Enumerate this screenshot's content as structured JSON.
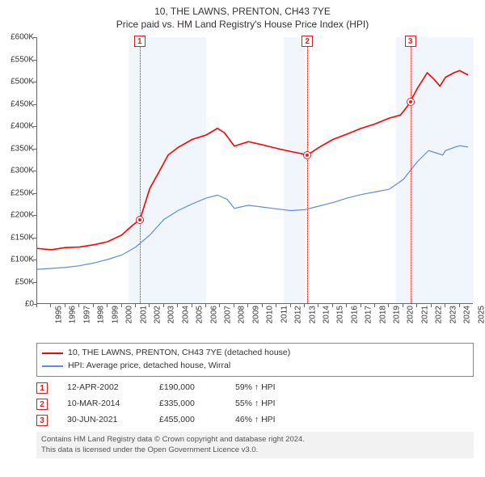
{
  "title": {
    "line1": "10, THE LAWNS, PRENTON, CH43 7YE",
    "line2": "Price paid vs. HM Land Registry's House Price Index (HPI)"
  },
  "chart": {
    "xlim": [
      1995,
      2026
    ],
    "ylim": [
      0,
      600
    ],
    "y_unit_prefix": "£",
    "y_unit_suffix": "K",
    "ytick_step": 50,
    "xticks": [
      1995,
      1996,
      1997,
      1998,
      1999,
      2000,
      2001,
      2002,
      2003,
      2004,
      2005,
      2006,
      2007,
      2008,
      2009,
      2010,
      2011,
      2012,
      2013,
      2014,
      2015,
      2016,
      2017,
      2018,
      2019,
      2020,
      2021,
      2022,
      2023,
      2024,
      2025
    ],
    "background_color": "#ffffff",
    "shade_color": "#e8f0fa",
    "axis_color": "#666666",
    "marker_color": "#e02020",
    "shaded_ranges": [
      [
        2001.5,
        2007.0
      ],
      [
        2012.5,
        2014.0
      ],
      [
        2020.5,
        2026.0
      ]
    ],
    "series": [
      {
        "name": "10, THE LAWNS, PRENTON, CH43 7YE (detached house)",
        "color": "#ff0000",
        "width": 1.6,
        "data": [
          [
            1995,
            125
          ],
          [
            1996,
            122
          ],
          [
            1997,
            127
          ],
          [
            1998,
            128
          ],
          [
            1999,
            133
          ],
          [
            2000,
            140
          ],
          [
            2001,
            155
          ],
          [
            2001.7,
            175
          ],
          [
            2002.3,
            190
          ],
          [
            2003,
            260
          ],
          [
            2003.7,
            300
          ],
          [
            2004.3,
            335
          ],
          [
            2005,
            352
          ],
          [
            2006,
            370
          ],
          [
            2007,
            380
          ],
          [
            2007.8,
            395
          ],
          [
            2008.3,
            385
          ],
          [
            2009,
            355
          ],
          [
            2010,
            365
          ],
          [
            2011,
            358
          ],
          [
            2012,
            350
          ],
          [
            2013,
            343
          ],
          [
            2013.8,
            338
          ],
          [
            2014.2,
            335
          ],
          [
            2015,
            352
          ],
          [
            2016,
            370
          ],
          [
            2017,
            382
          ],
          [
            2018,
            395
          ],
          [
            2019,
            405
          ],
          [
            2020,
            418
          ],
          [
            2020.8,
            425
          ],
          [
            2021.3,
            445
          ],
          [
            2021.5,
            455
          ],
          [
            2022,
            485
          ],
          [
            2022.7,
            520
          ],
          [
            2023.2,
            505
          ],
          [
            2023.6,
            490
          ],
          [
            2024,
            510
          ],
          [
            2024.6,
            520
          ],
          [
            2025,
            525
          ],
          [
            2025.6,
            515
          ]
        ]
      },
      {
        "name": "HPI: Average price, detached house, Wirral",
        "color": "#5b8fd6",
        "width": 1.2,
        "data": [
          [
            1995,
            78
          ],
          [
            1996,
            80
          ],
          [
            1997,
            82
          ],
          [
            1998,
            86
          ],
          [
            1999,
            92
          ],
          [
            2000,
            100
          ],
          [
            2001,
            110
          ],
          [
            2002,
            128
          ],
          [
            2003,
            155
          ],
          [
            2004,
            190
          ],
          [
            2005,
            210
          ],
          [
            2006,
            225
          ],
          [
            2007,
            238
          ],
          [
            2007.8,
            245
          ],
          [
            2008.5,
            235
          ],
          [
            2009,
            215
          ],
          [
            2010,
            222
          ],
          [
            2011,
            218
          ],
          [
            2012,
            214
          ],
          [
            2013,
            210
          ],
          [
            2014,
            212
          ],
          [
            2015,
            220
          ],
          [
            2016,
            228
          ],
          [
            2017,
            238
          ],
          [
            2018,
            246
          ],
          [
            2019,
            252
          ],
          [
            2020,
            258
          ],
          [
            2021,
            280
          ],
          [
            2022,
            320
          ],
          [
            2022.8,
            345
          ],
          [
            2023.3,
            340
          ],
          [
            2023.8,
            335
          ],
          [
            2024,
            345
          ],
          [
            2024.7,
            353
          ],
          [
            2025,
            356
          ],
          [
            2025.6,
            353
          ]
        ]
      }
    ],
    "markers": [
      {
        "n": "1",
        "x": 2002.28,
        "y": 190
      },
      {
        "n": "2",
        "x": 2014.19,
        "y": 335
      },
      {
        "n": "3",
        "x": 2021.5,
        "y": 455
      }
    ]
  },
  "legend": {
    "rows": [
      {
        "color": "#ff0000",
        "label": "10, THE LAWNS, PRENTON, CH43 7YE (detached house)"
      },
      {
        "color": "#5b8fd6",
        "label": "HPI: Average price, detached house, Wirral"
      }
    ]
  },
  "events": [
    {
      "n": "1",
      "date": "12-APR-2002",
      "price": "£190,000",
      "pct": "59% ↑ HPI"
    },
    {
      "n": "2",
      "date": "10-MAR-2014",
      "price": "£335,000",
      "pct": "55% ↑ HPI"
    },
    {
      "n": "3",
      "date": "30-JUN-2021",
      "price": "£455,000",
      "pct": "46% ↑ HPI"
    }
  ],
  "footer": {
    "line1": "Contains HM Land Registry data © Crown copyright and database right 2024.",
    "line2": "This data is licensed under the Open Government Licence v3.0."
  }
}
